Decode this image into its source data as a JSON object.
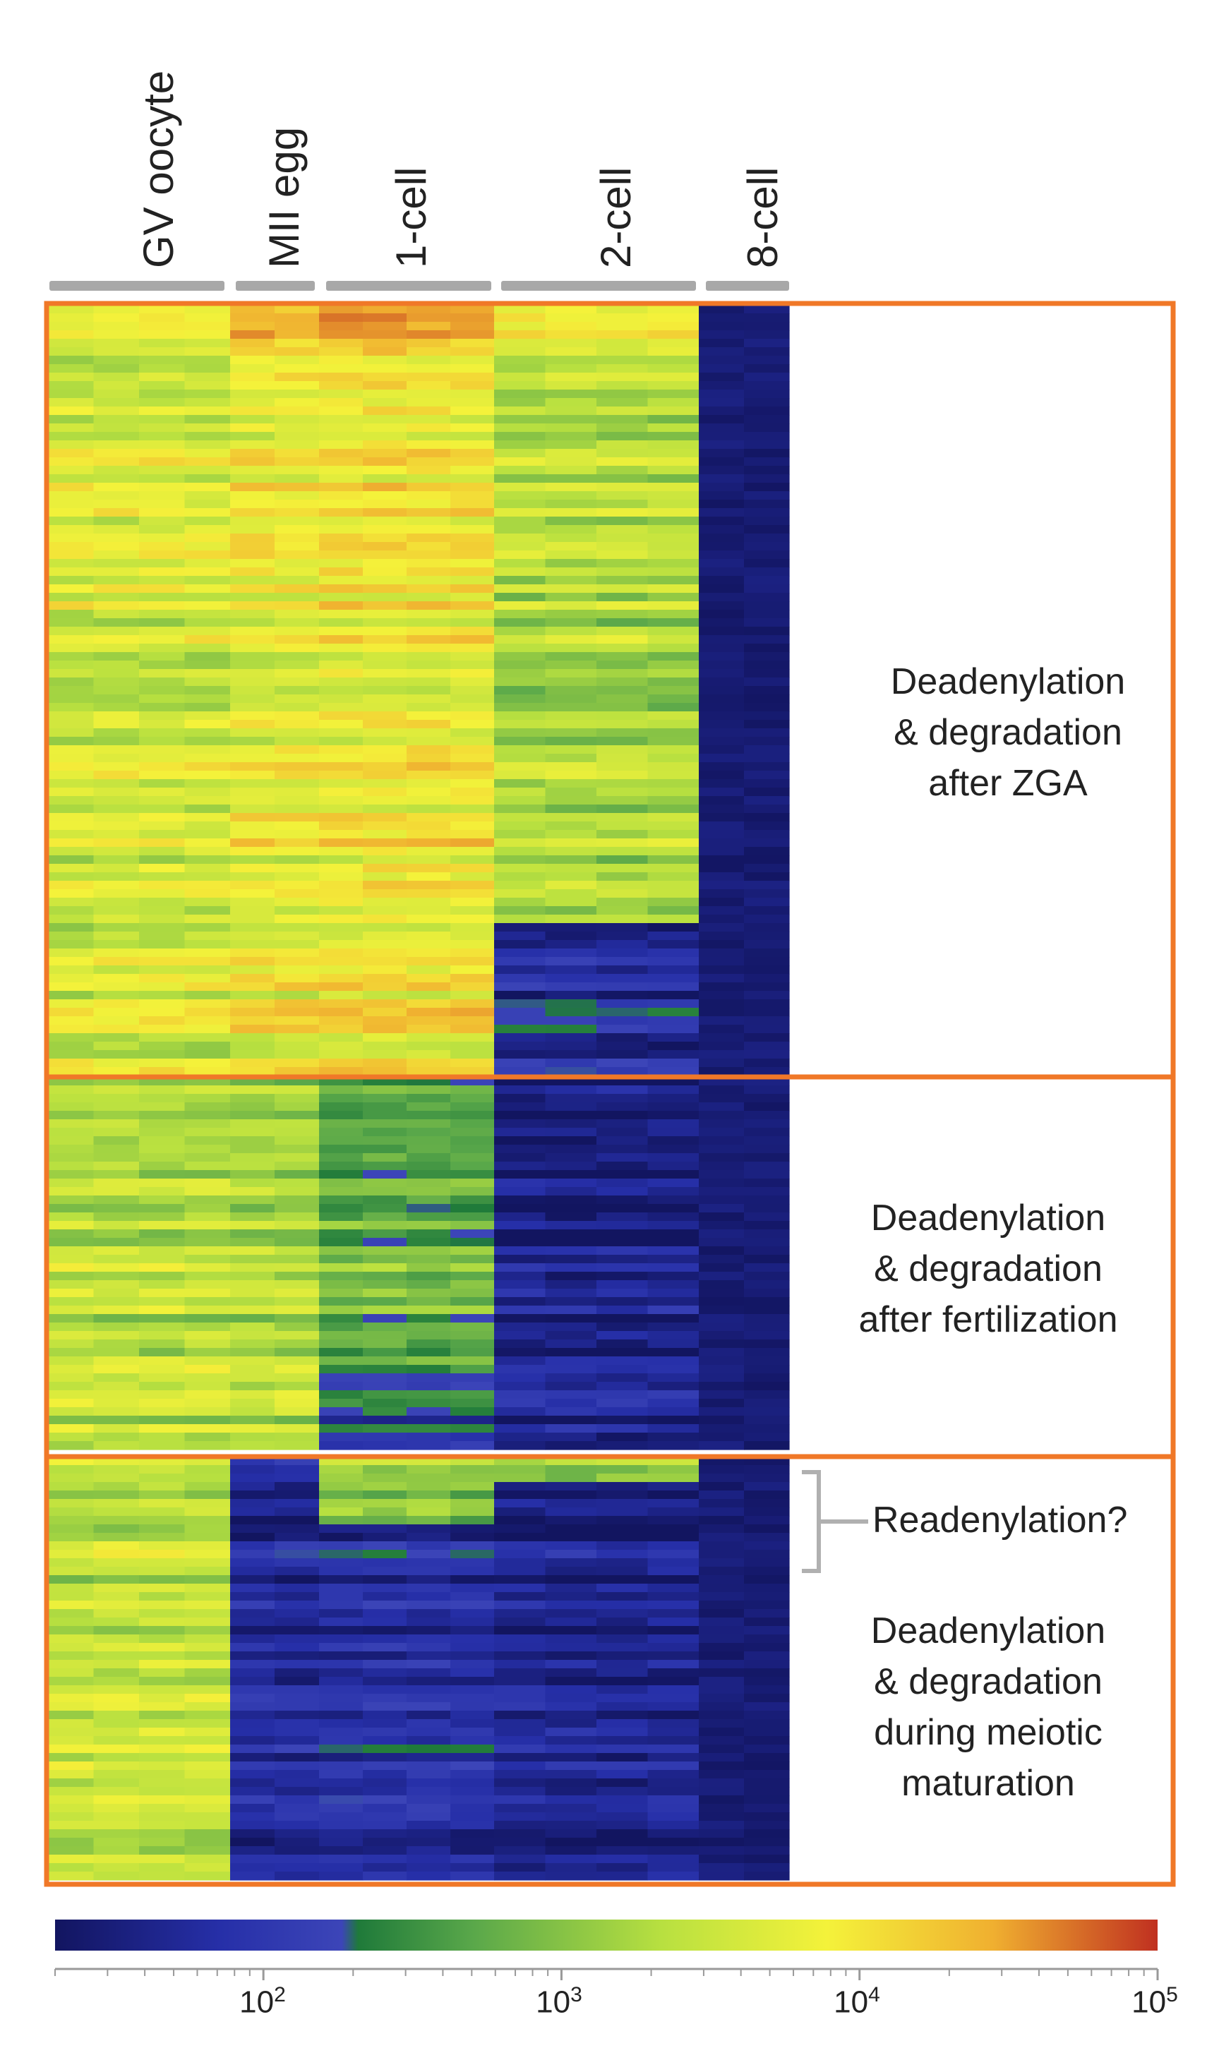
{
  "chart_data": {
    "type": "heatmap",
    "title": "",
    "stages": [
      "GV oocyte",
      "MII egg",
      "1-cell",
      "2-cell",
      "8-cell"
    ],
    "replicates_per_stage": [
      4,
      2,
      4,
      4,
      2
    ],
    "clusters": [
      {
        "name": "ZGA",
        "label_lines": [
          "Deadenylation",
          "& degradation",
          "after ZGA"
        ],
        "approx_log10_level_by_stage": [
          3.6,
          3.8,
          3.9,
          3.3,
          1.5
        ]
      },
      {
        "name": "fertilization",
        "label_lines": [
          "Deadenylation",
          "& degradation",
          "after fertilization"
        ],
        "approx_log10_level_by_stage": [
          3.4,
          3.3,
          2.8,
          1.6,
          1.5
        ]
      },
      {
        "name": "meiotic",
        "label_lines": [
          "Deadenylation",
          "& degradation",
          "during meiotic",
          "maturation"
        ],
        "approx_log10_level_by_stage": [
          3.4,
          1.7,
          1.8,
          1.6,
          1.5
        ]
      }
    ],
    "bracket_annotation": "Readenylation?",
    "colorbar": {
      "scale": "log",
      "range": [
        20,
        100000
      ],
      "colors": [
        "#121560",
        "#262fa8",
        "#3c45b8",
        "#1f7a3a",
        "#5aa84a",
        "#b8e040",
        "#f4f23a",
        "#f0b030",
        "#c03020"
      ],
      "ticks": [
        {
          "base": "10",
          "exp": "2",
          "value": 100
        },
        {
          "base": "10",
          "exp": "3",
          "value": 1000
        },
        {
          "base": "10",
          "exp": "4",
          "value": 10000
        },
        {
          "base": "10",
          "exp": "5",
          "value": 100000
        }
      ]
    },
    "border_color": "#f07828"
  }
}
